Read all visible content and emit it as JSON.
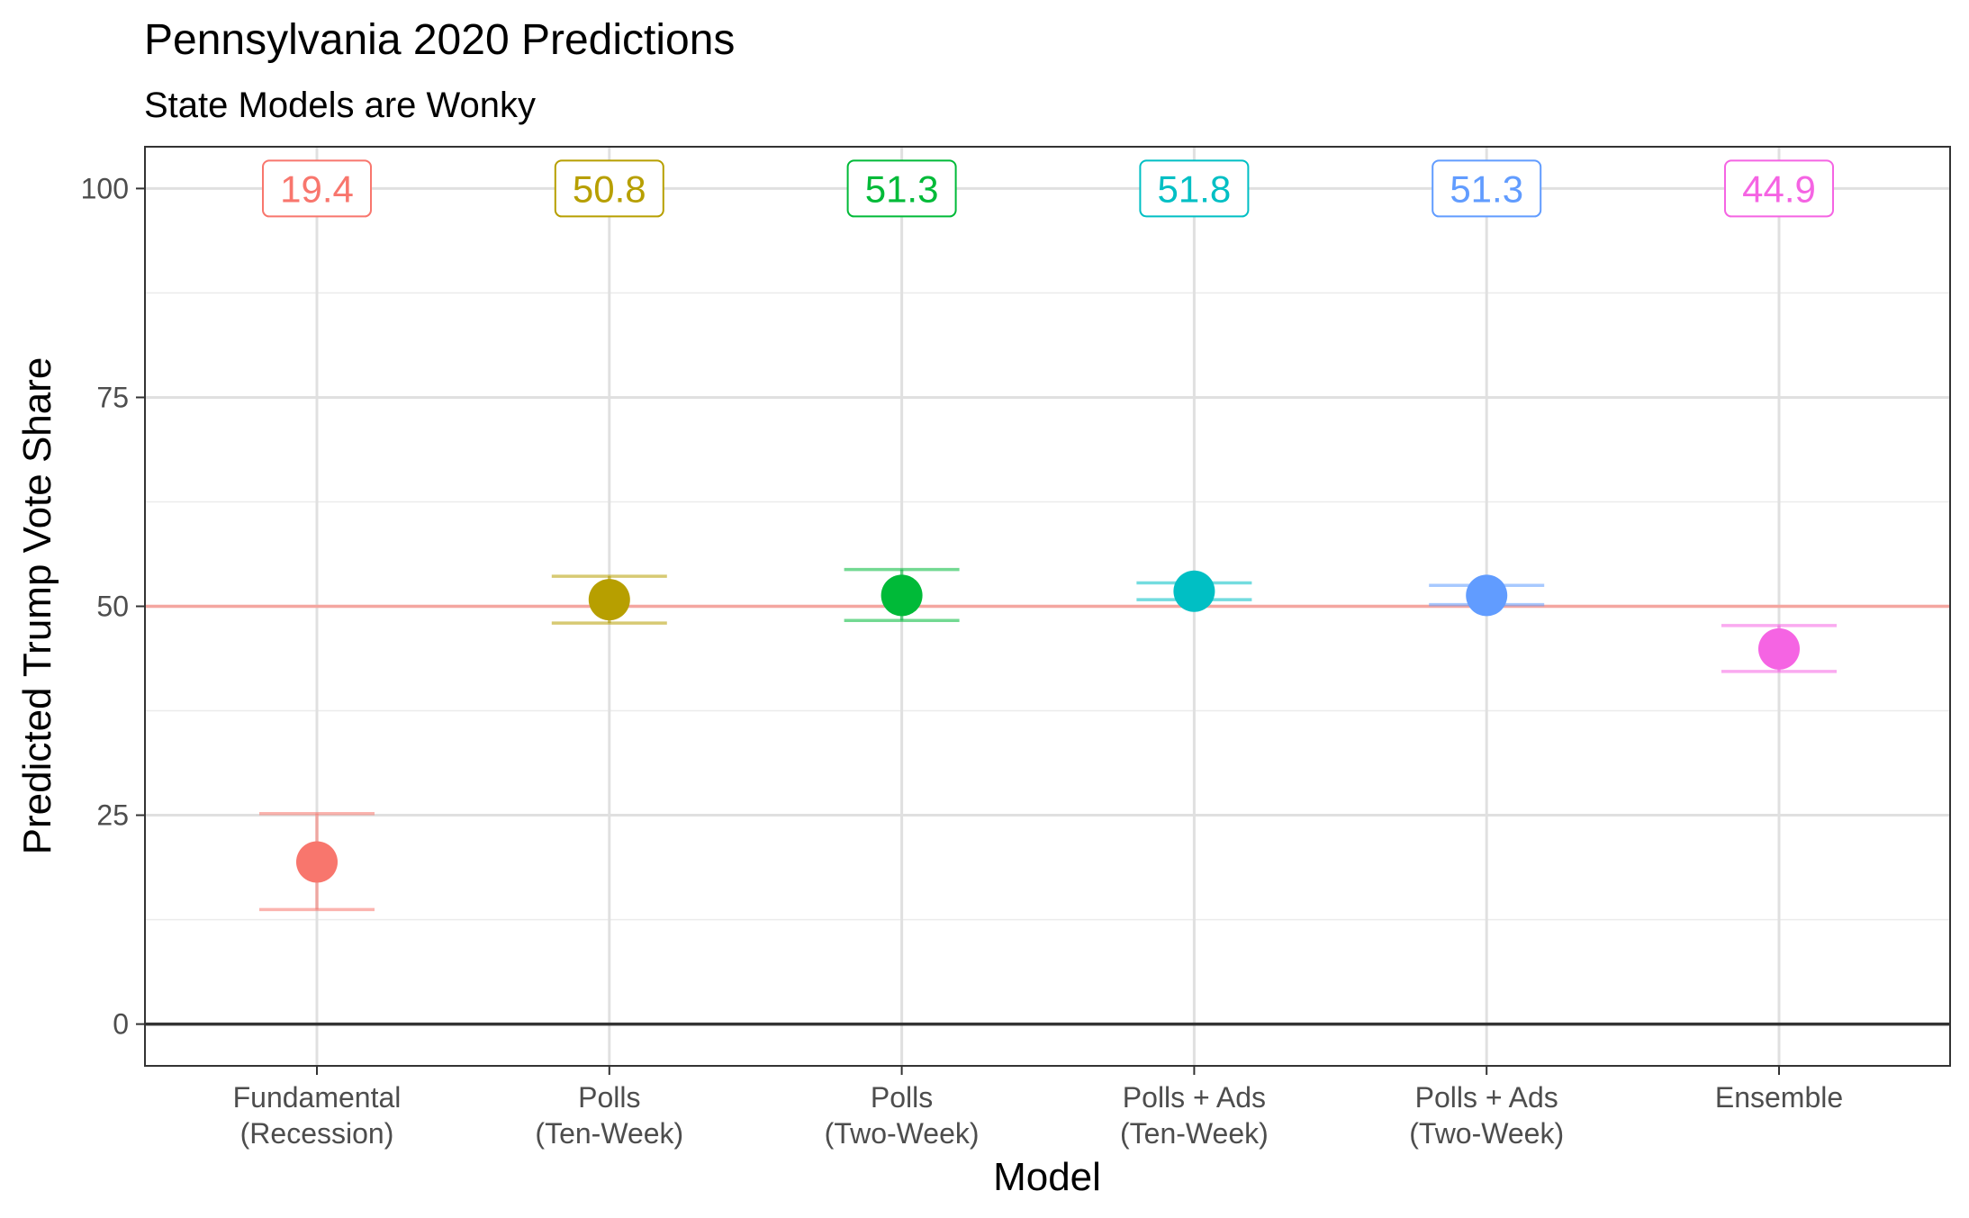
{
  "chart_data": {
    "type": "scatter",
    "title": "Pennsylvania 2020 Predictions",
    "subtitle": "State Models are Wonky",
    "xlabel": "Model",
    "ylabel": "Predicted Trump Vote Share",
    "ylim": [
      -5,
      105
    ],
    "yticks": [
      0,
      25,
      50,
      75,
      100
    ],
    "reference_lines": [
      {
        "y": 50,
        "color": "#f4a6a0"
      },
      {
        "y": 0,
        "color": "#333333"
      }
    ],
    "grid": true,
    "categories": [
      {
        "line1": "Fundamental",
        "line2": "(Recession)"
      },
      {
        "line1": "Polls",
        "line2": "(Ten-Week)"
      },
      {
        "line1": "Polls",
        "line2": "(Two-Week)"
      },
      {
        "line1": "Polls + Ads",
        "line2": "(Ten-Week)"
      },
      {
        "line1": "Polls + Ads",
        "line2": "(Two-Week)"
      },
      {
        "line1": "Ensemble",
        "line2": ""
      }
    ],
    "points": [
      {
        "value": 19.4,
        "lower": 13.7,
        "upper": 25.2,
        "label": "19.4",
        "color": "#F8766D"
      },
      {
        "value": 50.8,
        "lower": 48.0,
        "upper": 53.6,
        "label": "50.8",
        "color": "#B79F00"
      },
      {
        "value": 51.3,
        "lower": 48.3,
        "upper": 54.4,
        "label": "51.3",
        "color": "#00BA38"
      },
      {
        "value": 51.8,
        "lower": 50.8,
        "upper": 52.8,
        "label": "51.8",
        "color": "#00BFC4"
      },
      {
        "value": 51.3,
        "lower": 50.2,
        "upper": 52.5,
        "label": "51.3",
        "color": "#619CFF"
      },
      {
        "value": 44.9,
        "lower": 42.2,
        "upper": 47.7,
        "label": "44.9",
        "color": "#F564E3"
      }
    ],
    "label_y": 100
  }
}
